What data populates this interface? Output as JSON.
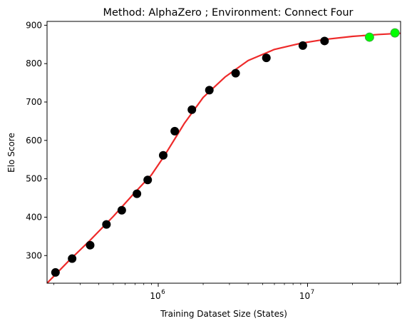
{
  "chart_data": {
    "type": "scatter",
    "title": "Method: AlphaZero ; Environment: Connect Four",
    "xlabel": "Training Dataset Size (States)",
    "ylabel": "Elo Score",
    "xscale": "log",
    "xlim": [
      180000,
      42000000
    ],
    "ylim": [
      228,
      910
    ],
    "yticks": [
      300,
      400,
      500,
      600,
      700,
      800,
      900
    ],
    "xticks": [
      {
        "value": 1000000,
        "base": "10",
        "exp": "6"
      },
      {
        "value": 10000000,
        "base": "10",
        "exp": "7"
      }
    ],
    "grid": false,
    "colors": {
      "points": "#000000",
      "highlight_points": "#00ff00",
      "fit_line": "#ee2a2a"
    },
    "points": [
      {
        "x": 205000,
        "y": 256
      },
      {
        "x": 265000,
        "y": 292
      },
      {
        "x": 350000,
        "y": 327
      },
      {
        "x": 450000,
        "y": 381
      },
      {
        "x": 570000,
        "y": 418
      },
      {
        "x": 720000,
        "y": 461
      },
      {
        "x": 850000,
        "y": 497
      },
      {
        "x": 1080000,
        "y": 561
      },
      {
        "x": 1290000,
        "y": 624
      },
      {
        "x": 1680000,
        "y": 680
      },
      {
        "x": 2200000,
        "y": 731
      },
      {
        "x": 3300000,
        "y": 775
      },
      {
        "x": 5300000,
        "y": 815
      },
      {
        "x": 9300000,
        "y": 847
      },
      {
        "x": 13000000,
        "y": 859
      }
    ],
    "highlight_points": [
      {
        "x": 26000000,
        "y": 869
      },
      {
        "x": 38500000,
        "y": 880
      }
    ],
    "fit_curve": {
      "x": [
        180000,
        250000,
        350000,
        500000,
        700000,
        900000,
        1100000,
        1500000,
        2000000,
        2800000,
        4000000,
        6000000,
        9000000,
        13000000,
        20000000,
        30000000,
        42000000
      ],
      "y": [
        228,
        285,
        340,
        402,
        465,
        510,
        560,
        645,
        712,
        765,
        808,
        837,
        853,
        863,
        871,
        876,
        879
      ]
    }
  }
}
